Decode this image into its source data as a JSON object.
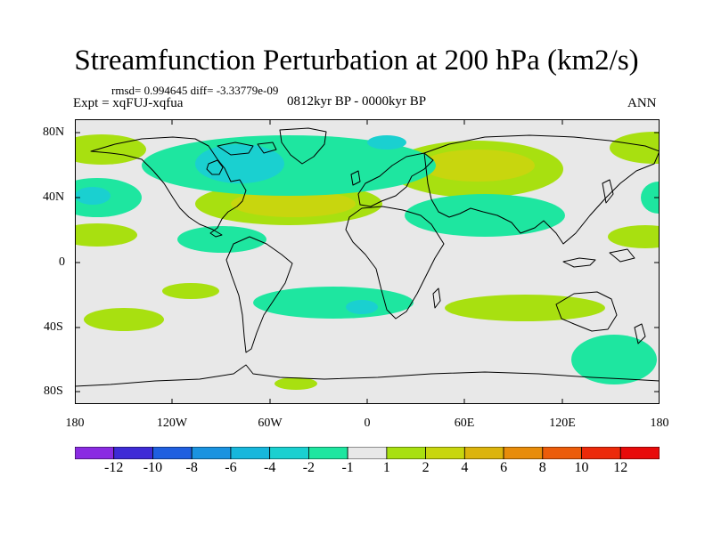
{
  "title": "Streamfunction Perturbation at 200 hPa (km2/s)",
  "stats": "rmsd= 0.994645 diff= -3.33779e-09",
  "experiment": "Expt = xqFUJ-xqfua",
  "period": "0812kyr BP - 0000kyr BP",
  "season": "ANN",
  "axes": {
    "lat_labels": [
      "80N",
      "40N",
      "0",
      "40S",
      "80S"
    ],
    "lon_labels": [
      "180",
      "120W",
      "60W",
      "0",
      "60E",
      "120E",
      "180"
    ]
  },
  "colorbar": {
    "labels": [
      "-12",
      "-10",
      "-8",
      "-6",
      "-4",
      "-2",
      "-1",
      "1",
      "2",
      "4",
      "6",
      "8",
      "10",
      "12"
    ],
    "colors": [
      "#8a2be2",
      "#3e2bd6",
      "#1f5fe0",
      "#1a93e0",
      "#17b7dc",
      "#1ad0d0",
      "#1ee6a0",
      "#e8e8e8",
      "#a8e010",
      "#c8d60e",
      "#dcb40c",
      "#e88c0a",
      "#ec5c0a",
      "#ec2a0a",
      "#e80a0a"
    ]
  },
  "colors": {
    "background": "#e8e8e8",
    "pos1": "#a8e010",
    "pos2": "#c8d60e",
    "neg1": "#1ee6a0",
    "neg2": "#1ad0d0",
    "coast": "#000000"
  }
}
